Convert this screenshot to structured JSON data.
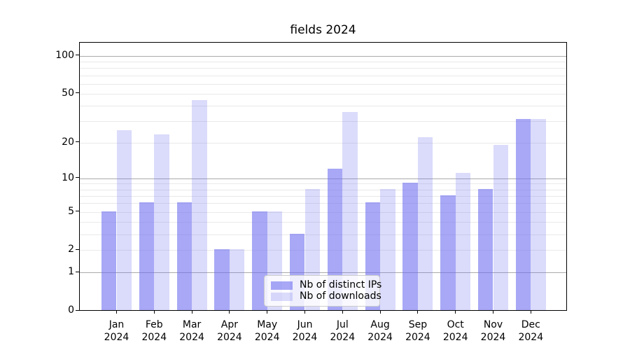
{
  "title": "fields 2024",
  "chart_data": {
    "type": "bar",
    "title": "fields 2024",
    "categories": [
      "Jan 2024",
      "Feb 2024",
      "Mar 2024",
      "Apr 2024",
      "May 2024",
      "Jun 2024",
      "Jul 2024",
      "Aug 2024",
      "Sep 2024",
      "Oct 2024",
      "Nov 2024",
      "Dec 2024"
    ],
    "series": [
      {
        "name": "Nb of distinct IPs",
        "color": "rgba(110,110,240,0.60)",
        "values": [
          5,
          6,
          6,
          2,
          5,
          3,
          12,
          6,
          9,
          7,
          8,
          31
        ]
      },
      {
        "name": "Nb of downloads",
        "color": "rgba(110,110,240,0.25)",
        "values": [
          25,
          23,
          44,
          2,
          5,
          8,
          35,
          8,
          22,
          11,
          19,
          31
        ]
      }
    ],
    "xlabel": "",
    "ylabel": "",
    "yscale": "log10(1+y)",
    "ylim": [
      0,
      128
    ],
    "y_ticks": [
      0,
      1,
      2,
      5,
      10,
      20,
      50,
      100
    ],
    "grid": {
      "orientation": "horizontal",
      "major_at": [
        1,
        10,
        100
      ],
      "minor_at": [
        2,
        3,
        4,
        5,
        6,
        7,
        8,
        9,
        20,
        30,
        40,
        50,
        60,
        70,
        80,
        90
      ],
      "major_color": "#ababab",
      "minor_color": "#e9e9e9"
    },
    "legend_position": "lower center"
  },
  "colors": {
    "background": "#ffffff",
    "axis": "#000000",
    "tick_text": "#000000",
    "bar_distinct_ips": "rgba(110,110,240,0.60)",
    "bar_downloads": "rgba(110,110,240,0.25)",
    "legend_border": "#cccccc",
    "legend_background": "rgba(255,255,255,0.8)"
  }
}
